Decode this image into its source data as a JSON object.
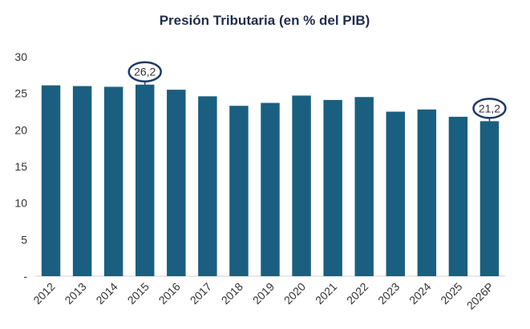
{
  "chart_data": {
    "type": "bar",
    "title": "Presión Tributaria (en % del PIB)",
    "xlabel": "",
    "ylabel": "",
    "categories": [
      "2012",
      "2013",
      "2014",
      "2015",
      "2016",
      "2017",
      "2018",
      "2019",
      "2020",
      "2021",
      "2022",
      "2023",
      "2024",
      "2025",
      "2026P"
    ],
    "values": [
      26.1,
      26.0,
      25.9,
      26.2,
      25.5,
      24.6,
      23.3,
      23.7,
      24.7,
      24.1,
      24.5,
      22.5,
      22.8,
      21.8,
      21.2
    ],
    "ylim": [
      0,
      30
    ],
    "yticks": [
      0,
      5,
      10,
      15,
      20,
      25,
      30
    ],
    "ytick_labels": [
      "-",
      "5",
      "10",
      "15",
      "20",
      "25",
      "30"
    ],
    "grid": false,
    "legend": "none",
    "bar_color": "#1a5f80",
    "annotations": [
      {
        "category": "2015",
        "text": "26,2"
      },
      {
        "category": "2026P",
        "text": "21,2"
      }
    ]
  }
}
